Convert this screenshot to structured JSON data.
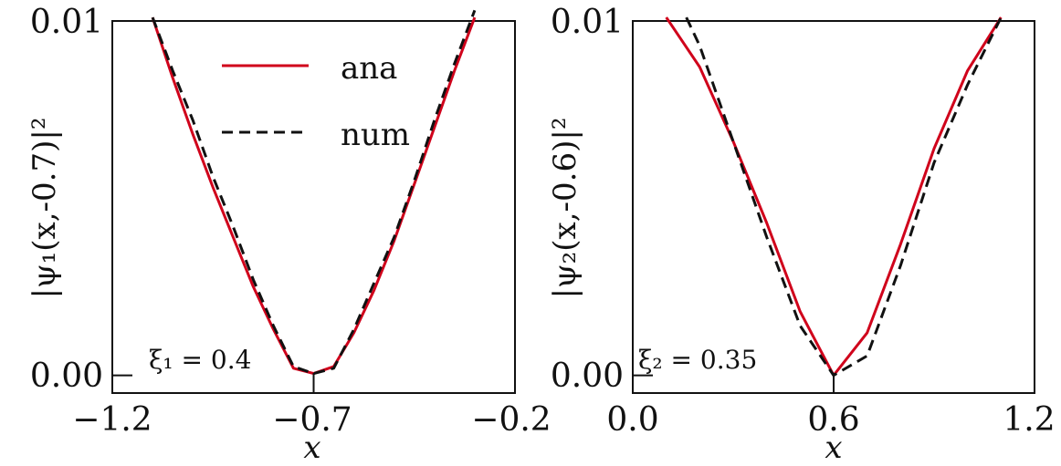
{
  "chart_data": [
    {
      "type": "line",
      "ylabel": "|ψ₁(x,-0.7)|²",
      "xlabel": "x",
      "xlim": [
        -1.2,
        -0.2
      ],
      "ylim": [
        -0.0005,
        0.01
      ],
      "xticks": [
        "−1.2",
        "−0.7",
        "−0.2"
      ],
      "xtick_values": [
        -1.2,
        -0.7,
        -0.2
      ],
      "yticks": [
        "0.00",
        "0.01"
      ],
      "ytick_values": [
        0.0,
        0.01
      ],
      "annotation": "ξ₁ = 0.4",
      "legend": {
        "placement": "top-center",
        "entries": [
          "ana",
          "num"
        ]
      },
      "series": [
        {
          "name": "ana",
          "color": "#d0021b",
          "style": "solid",
          "x": [
            -1.1,
            -1.05,
            -1.0,
            -0.95,
            -0.9,
            -0.85,
            -0.8,
            -0.75,
            -0.7,
            -0.65,
            -0.6,
            -0.55,
            -0.5,
            -0.45,
            -0.4,
            -0.35,
            -0.3
          ],
          "y": [
            0.0101,
            0.0084,
            0.0068,
            0.0053,
            0.0039,
            0.0025,
            0.0013,
            0.0002,
            5e-05,
            0.00025,
            0.0012,
            0.0024,
            0.0038,
            0.0054,
            0.007,
            0.0086,
            0.0101
          ]
        },
        {
          "name": "num",
          "color": "#111111",
          "style": "dashed",
          "x": [
            -1.1,
            -1.05,
            -1.0,
            -0.95,
            -0.9,
            -0.85,
            -0.8,
            -0.75,
            -0.7,
            -0.65,
            -0.6,
            -0.55,
            -0.5,
            -0.45,
            -0.4,
            -0.35,
            -0.3
          ],
          "y": [
            0.0101,
            0.0086,
            0.0072,
            0.0056,
            0.0042,
            0.0027,
            0.0014,
            0.00025,
            5e-05,
            0.0002,
            0.0013,
            0.0026,
            0.0039,
            0.0055,
            0.0072,
            0.0088,
            0.0103
          ]
        }
      ]
    },
    {
      "type": "line",
      "ylabel": "|ψ₂(x,-0.6)|²",
      "xlabel": "x",
      "xlim": [
        0.0,
        1.2
      ],
      "ylim": [
        -0.0005,
        0.01
      ],
      "xticks": [
        "0.0",
        "0.6",
        "1.2"
      ],
      "xtick_values": [
        0.0,
        0.6,
        1.2
      ],
      "yticks": [
        "0.00",
        "0.01"
      ],
      "ytick_values": [
        0.0,
        0.01
      ],
      "annotation": "ξ₂ = 0.35",
      "series": [
        {
          "name": "ana",
          "color": "#d0021b",
          "style": "solid",
          "x": [
            0.1,
            0.2,
            0.3,
            0.4,
            0.5,
            0.6,
            0.7,
            0.8,
            0.9,
            1.0,
            1.1
          ],
          "y": [
            0.0101,
            0.0087,
            0.0066,
            0.0043,
            0.0018,
            0.0,
            0.0012,
            0.0037,
            0.0064,
            0.0086,
            0.0101
          ]
        },
        {
          "name": "num",
          "color": "#111111",
          "style": "dashed",
          "x": [
            0.16,
            0.2,
            0.3,
            0.4,
            0.5,
            0.6,
            0.7,
            0.8,
            0.9,
            1.0,
            1.1
          ],
          "y": [
            0.0101,
            0.0093,
            0.0066,
            0.0039,
            0.0014,
            0.0,
            0.00055,
            0.0031,
            0.006,
            0.0082,
            0.0101
          ]
        }
      ]
    }
  ]
}
